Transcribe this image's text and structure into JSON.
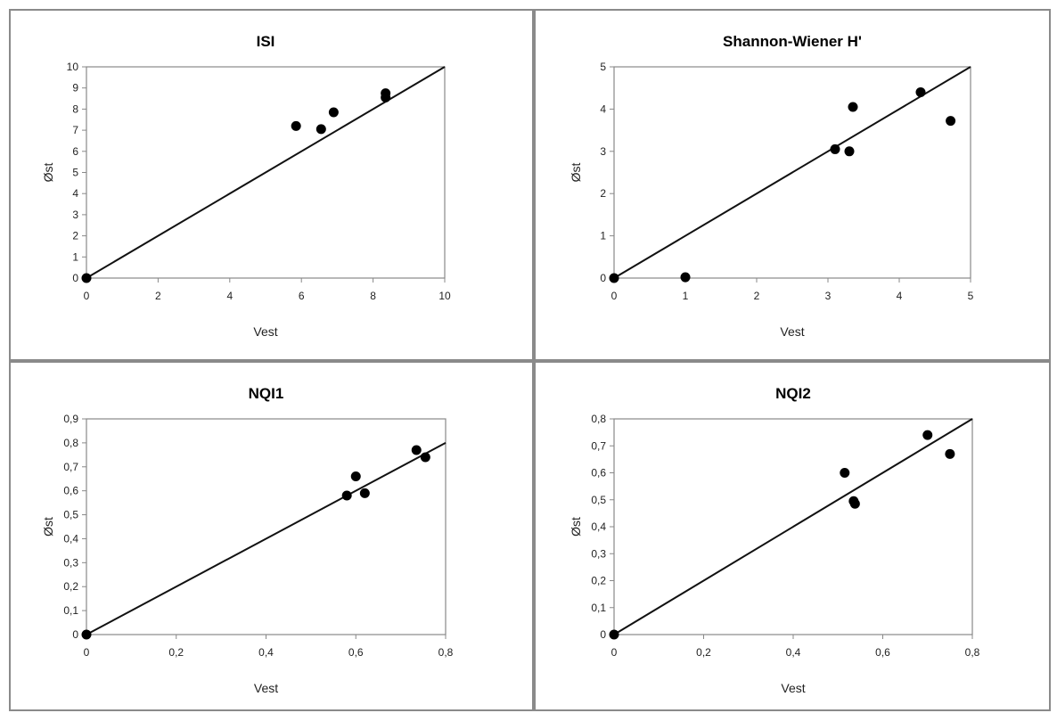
{
  "chart_data": [
    {
      "type": "scatter",
      "title": "ISI",
      "xlabel": "Vest",
      "ylabel": "Øst",
      "xlim": [
        0,
        10
      ],
      "ylim": [
        0,
        10
      ],
      "xticks": [
        "0",
        "2",
        "4",
        "6",
        "8",
        "10"
      ],
      "yticks": [
        "0",
        "1",
        "2",
        "3",
        "4",
        "5",
        "6",
        "7",
        "8",
        "9",
        "10"
      ],
      "reference_line": "y = x",
      "grid": false,
      "points": [
        {
          "x": 0,
          "y": 0
        },
        {
          "x": 5.85,
          "y": 7.2
        },
        {
          "x": 6.55,
          "y": 7.05
        },
        {
          "x": 6.9,
          "y": 7.85
        },
        {
          "x": 8.35,
          "y": 8.75
        },
        {
          "x": 8.35,
          "y": 8.55
        }
      ]
    },
    {
      "type": "scatter",
      "title": "Shannon-Wiener  H'",
      "xlabel": "Vest",
      "ylabel": "Øst",
      "xlim": [
        0,
        5
      ],
      "ylim": [
        0,
        5
      ],
      "xticks": [
        "0",
        "1",
        "2",
        "3",
        "4",
        "5"
      ],
      "yticks": [
        "0",
        "1",
        "2",
        "3",
        "4",
        "5"
      ],
      "reference_line": "y = x",
      "grid": false,
      "points": [
        {
          "x": 0,
          "y": 0
        },
        {
          "x": 1.0,
          "y": 0.02
        },
        {
          "x": 3.1,
          "y": 3.05
        },
        {
          "x": 3.3,
          "y": 3.0
        },
        {
          "x": 3.35,
          "y": 4.05
        },
        {
          "x": 4.3,
          "y": 4.4
        },
        {
          "x": 4.72,
          "y": 3.72
        }
      ]
    },
    {
      "type": "scatter",
      "title": "NQI1",
      "xlabel": "Vest",
      "ylabel": "Øst",
      "xlim": [
        0,
        0.8
      ],
      "ylim": [
        0,
        0.9
      ],
      "xticks": [
        "0",
        "0,2",
        "0,4",
        "0,6",
        "0,8"
      ],
      "yticks": [
        "0",
        "0,1",
        "0,2",
        "0,3",
        "0,4",
        "0,5",
        "0,6",
        "0,7",
        "0,8",
        "0,9"
      ],
      "reference_line": "y = x",
      "grid": false,
      "points": [
        {
          "x": 0,
          "y": 0
        },
        {
          "x": 0.58,
          "y": 0.58
        },
        {
          "x": 0.6,
          "y": 0.66
        },
        {
          "x": 0.62,
          "y": 0.59
        },
        {
          "x": 0.735,
          "y": 0.77
        },
        {
          "x": 0.755,
          "y": 0.74
        }
      ]
    },
    {
      "type": "scatter",
      "title": "NQI2",
      "xlabel": "Vest",
      "ylabel": "Øst",
      "xlim": [
        0,
        0.8
      ],
      "ylim": [
        0,
        0.8
      ],
      "xticks": [
        "0",
        "0,2",
        "0,4",
        "0,6",
        "0,8"
      ],
      "yticks": [
        "0",
        "0,1",
        "0,2",
        "0,3",
        "0,4",
        "0,5",
        "0,6",
        "0,7",
        "0,8"
      ],
      "reference_line": "y = x",
      "grid": false,
      "points": [
        {
          "x": 0,
          "y": 0
        },
        {
          "x": 0.515,
          "y": 0.6
        },
        {
          "x": 0.535,
          "y": 0.495
        },
        {
          "x": 0.538,
          "y": 0.485
        },
        {
          "x": 0.7,
          "y": 0.74
        },
        {
          "x": 0.75,
          "y": 0.67
        }
      ]
    }
  ],
  "colors": {
    "marker": "#000000",
    "line": "#111111",
    "axis": "#888888",
    "panel_border": "#8a8a8a"
  }
}
